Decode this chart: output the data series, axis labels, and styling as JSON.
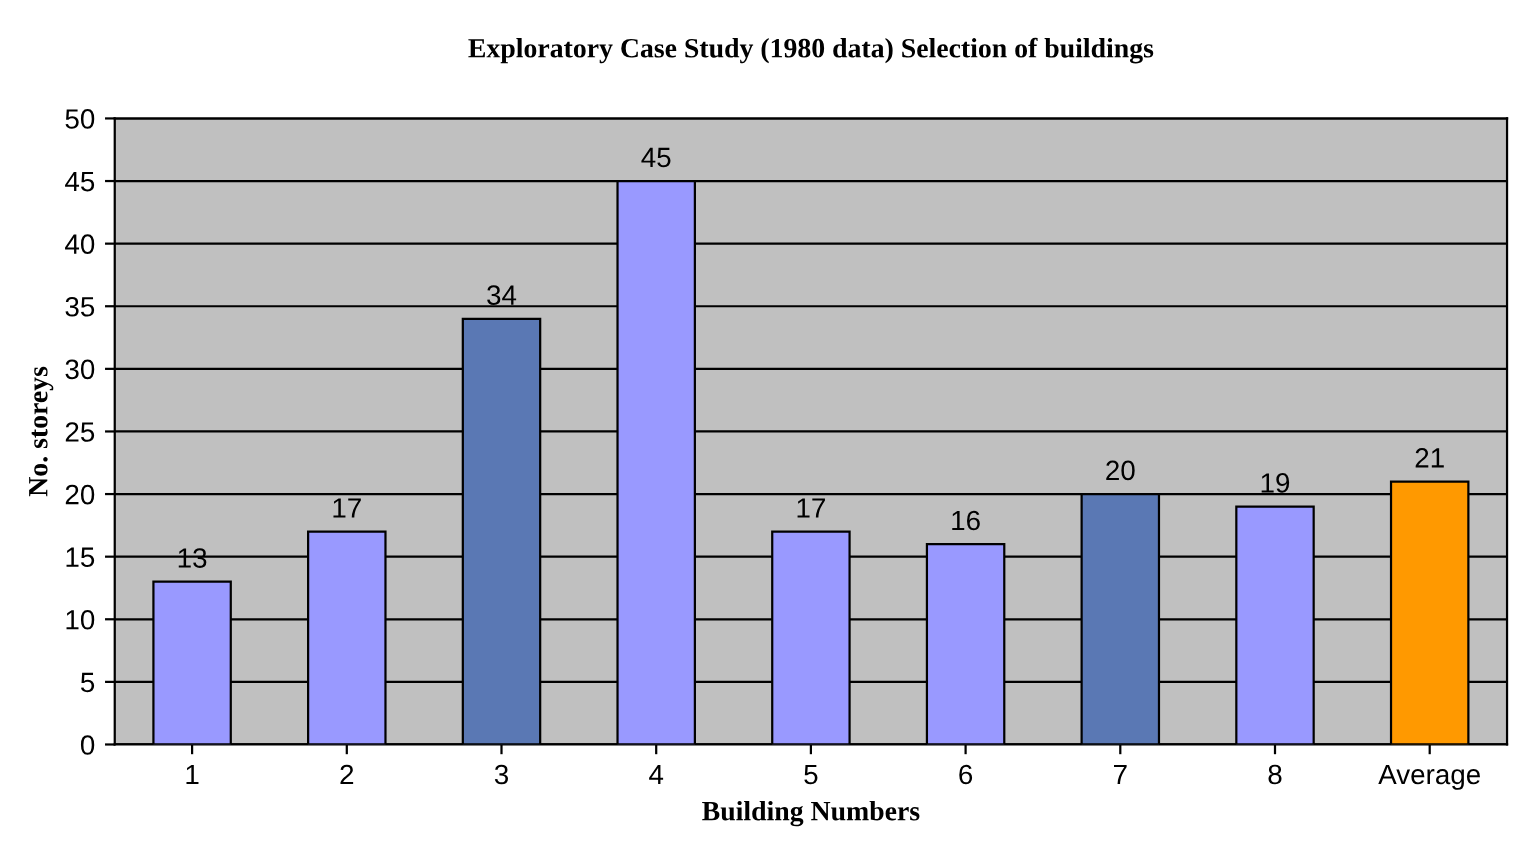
{
  "chart_data": {
    "type": "bar",
    "title": "Exploratory Case Study (1980 data) Selection of buildings",
    "xlabel": "Building Numbers",
    "ylabel": "No. storeys",
    "categories": [
      "1",
      "2",
      "3",
      "4",
      "5",
      "6",
      "7",
      "8",
      "Average"
    ],
    "values": [
      13,
      17,
      34,
      45,
      17,
      16,
      20,
      19,
      21
    ],
    "colors": [
      "#9999ff",
      "#9999ff",
      "#5a78b4",
      "#9999ff",
      "#9999ff",
      "#9999ff",
      "#5a78b4",
      "#9999ff",
      "#ff9900"
    ],
    "ylim": [
      0,
      50
    ],
    "yticks": [
      0,
      5,
      10,
      15,
      20,
      25,
      30,
      35,
      40,
      45,
      50
    ],
    "grid": "y",
    "data_labels": true
  }
}
